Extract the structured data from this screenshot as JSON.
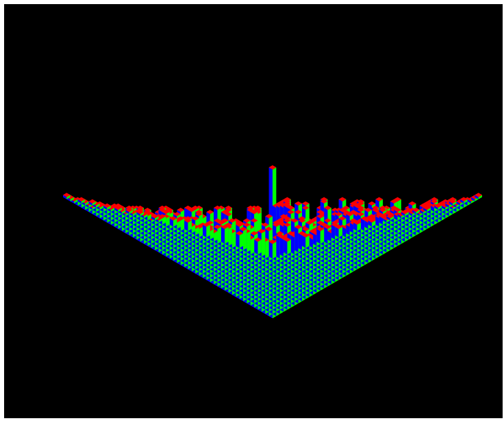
{
  "scene": {
    "description_visible_text": "",
    "colors": {
      "background": "#000000",
      "top_face": "#ff0000",
      "left_face": "#0000ff",
      "right_face": "#00ff00"
    }
  }
}
